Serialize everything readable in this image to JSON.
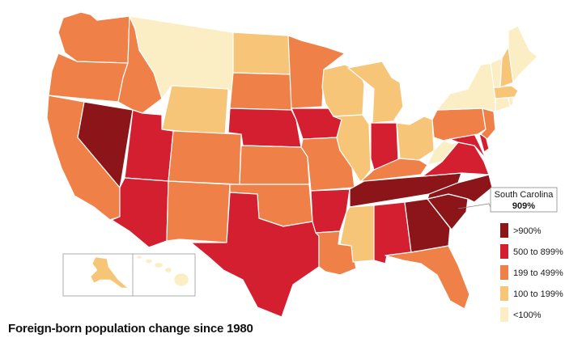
{
  "title": "Foreign-born population change since 1980",
  "categories": [
    {
      "id": "gt900",
      "label": ">900%",
      "color": "#8b1518"
    },
    {
      "id": "500to899",
      "label": "500 to 899%",
      "color": "#d31f30"
    },
    {
      "id": "199to499",
      "label": "199 to 499%",
      "color": "#ee8048"
    },
    {
      "id": "100to199",
      "label": "100 to 199%",
      "color": "#f7c577"
    },
    {
      "id": "lt100",
      "label": "<100%",
      "color": "#fbeec4"
    }
  ],
  "callout": {
    "state": "South Carolina",
    "value": "909%"
  },
  "states": {
    "WA": "199to499",
    "OR": "199to499",
    "CA": "199to499",
    "NV": "gt900",
    "ID": "199to499",
    "MT": "lt100",
    "WY": "100to199",
    "UT": "500to899",
    "AZ": "500to899",
    "CO": "199to499",
    "NM": "199to499",
    "ND": "100to199",
    "SD": "199to499",
    "NE": "500to899",
    "KS": "199to499",
    "OK": "199to499",
    "TX": "500to899",
    "MN": "199to499",
    "IA": "500to899",
    "MO": "199to499",
    "AR": "500to899",
    "LA": "199to499",
    "WI": "100to199",
    "IL": "100to199",
    "MI": "100to199",
    "IN": "500to899",
    "OH": "100to199",
    "KY": "199to499",
    "TN": "gt900",
    "MS": "100to199",
    "AL": "500to899",
    "GA": "gt900",
    "FL": "199to499",
    "SC": "gt900",
    "NC": "gt900",
    "VA": "500to899",
    "WV": "lt100",
    "MD": "500to899",
    "DE": "500to899",
    "PA": "199to499",
    "NJ": "199to499",
    "NY": "lt100",
    "CT": "lt100",
    "RI": "lt100",
    "MA": "100to199",
    "VT": "lt100",
    "NH": "100to199",
    "ME": "lt100",
    "AK": "100to199",
    "HI": "lt100"
  }
}
